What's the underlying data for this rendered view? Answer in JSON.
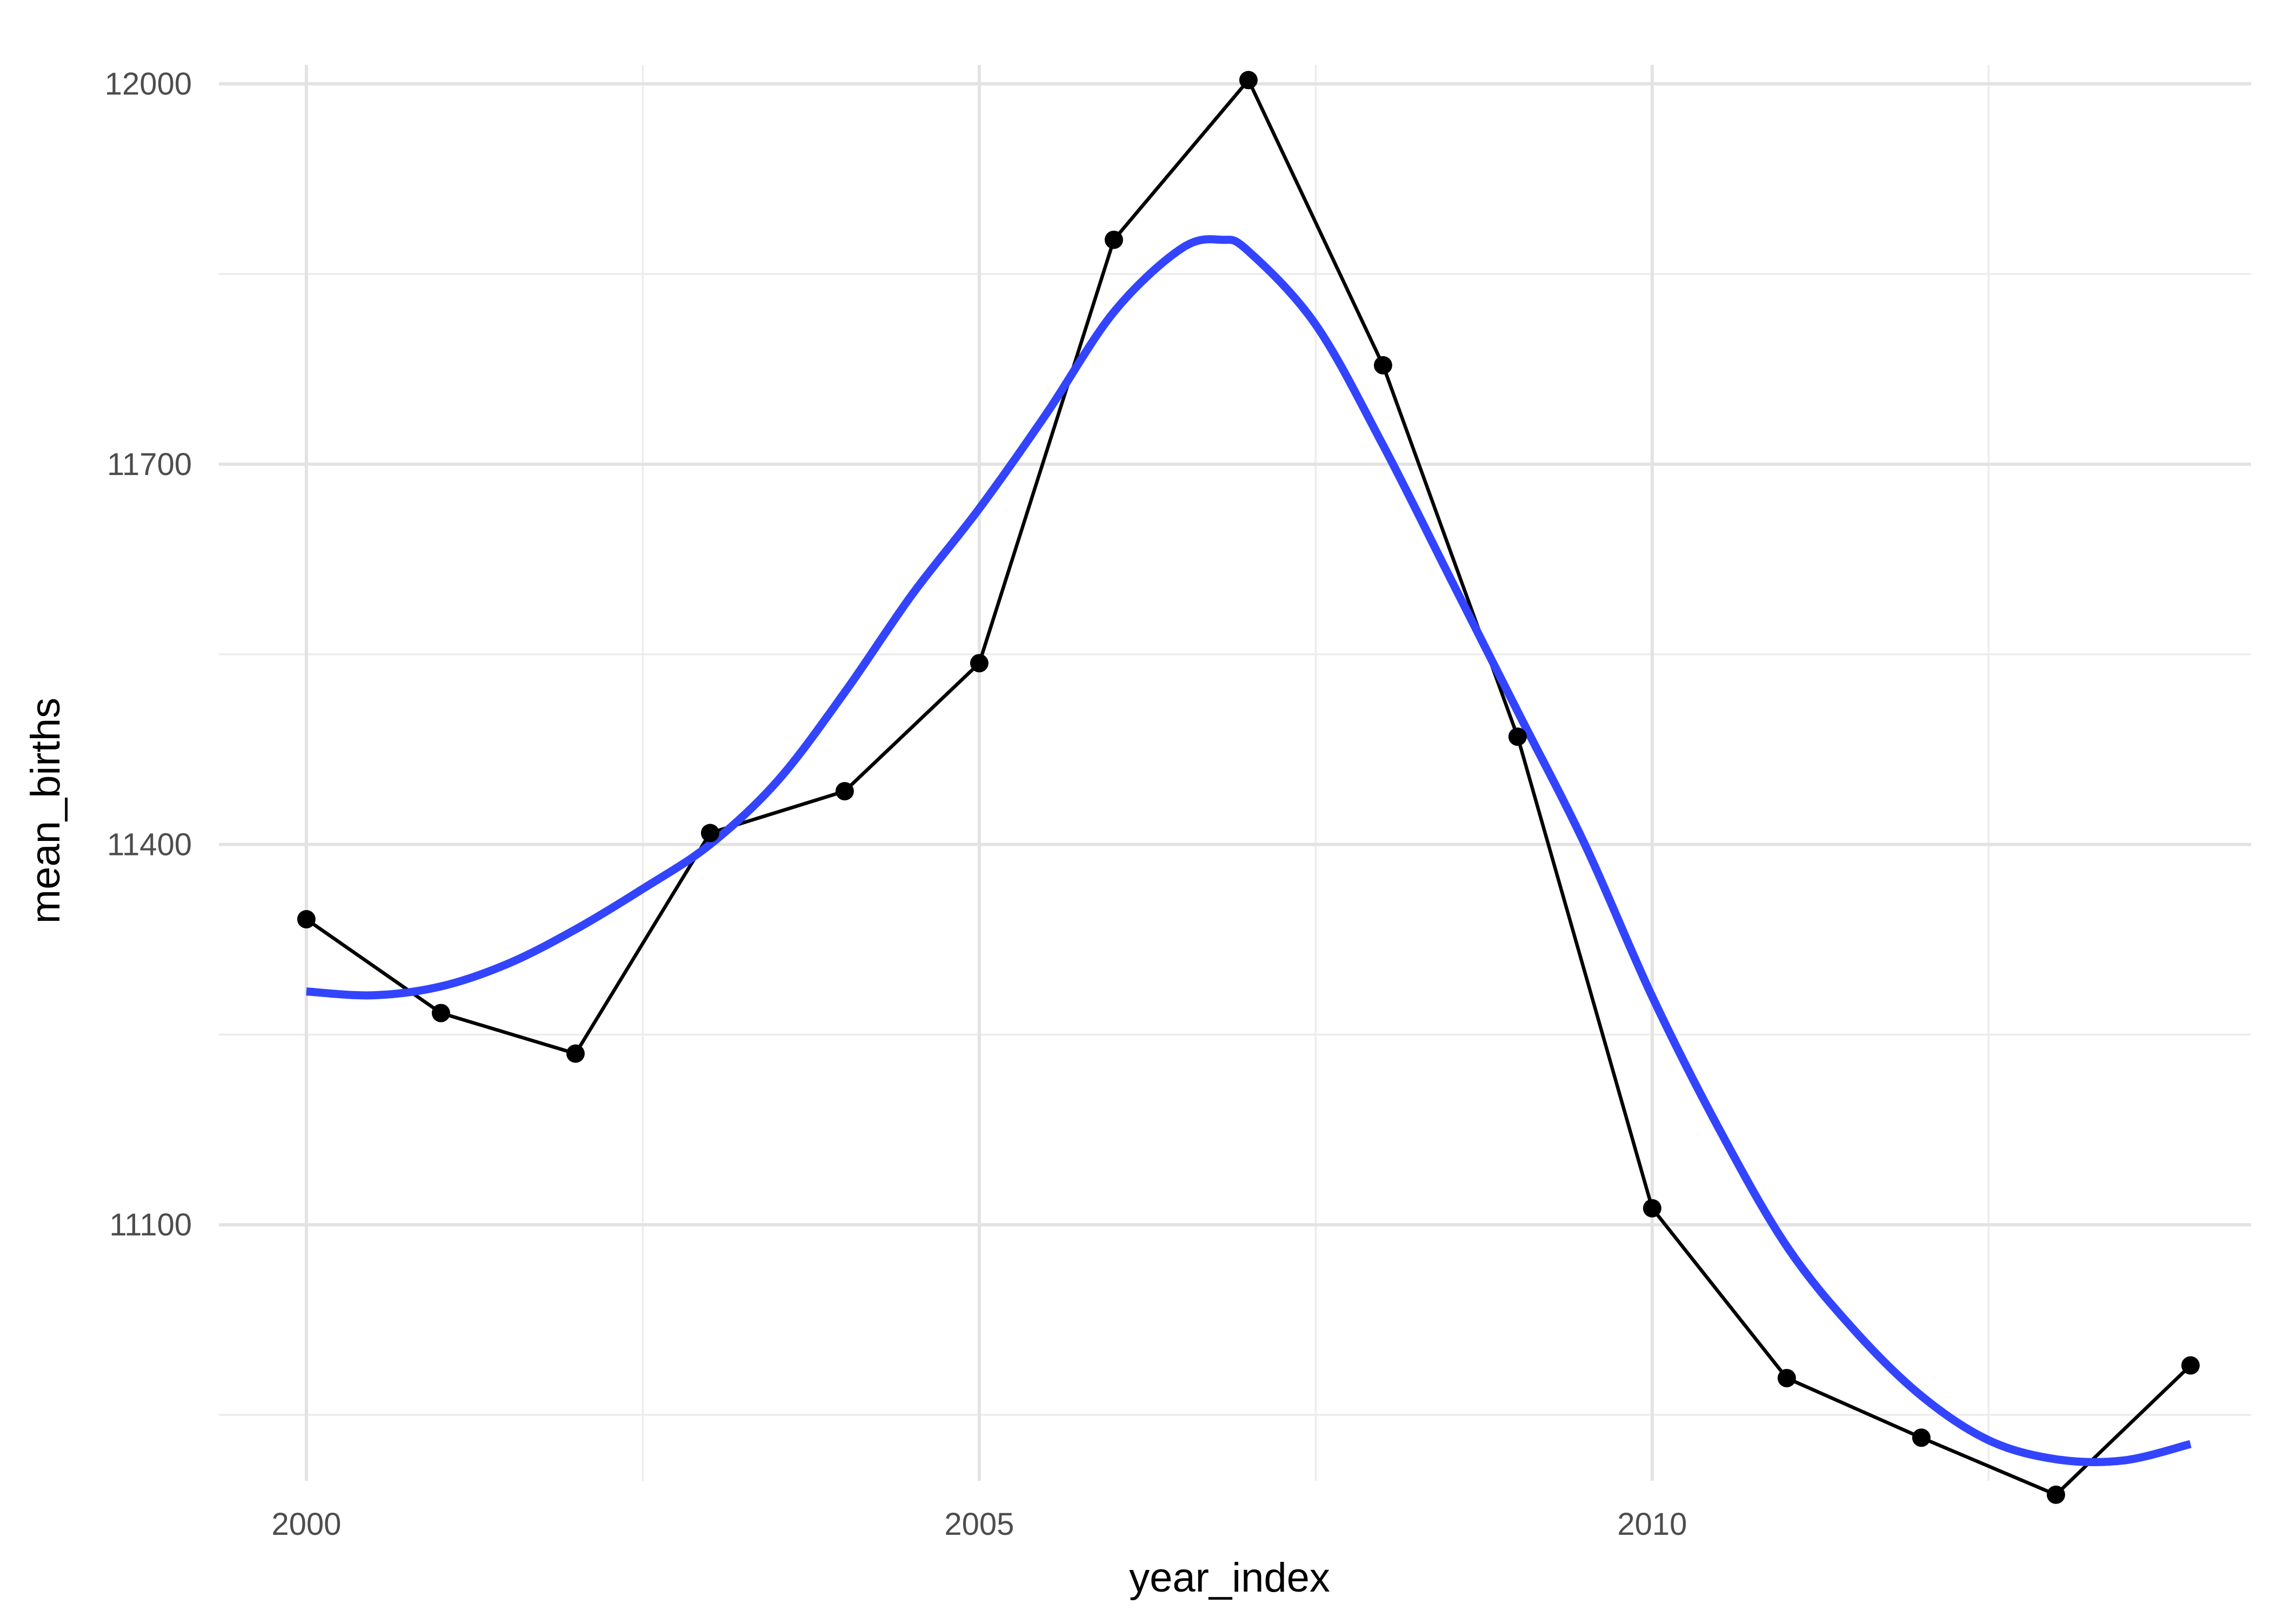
{
  "chart_data": {
    "type": "line",
    "title": "",
    "xlabel": "year_index",
    "ylabel": "mean_births",
    "xlim": [
      1999.35,
      2014.45
    ],
    "ylim": [
      10898,
      12015
    ],
    "x_ticks": [
      2000,
      2005,
      2010
    ],
    "x_tick_labels": [
      "2000",
      "2005",
      "2010"
    ],
    "y_ticks": [
      11100,
      11400,
      11700,
      12000
    ],
    "y_tick_labels": [
      "11100",
      "11400",
      "11700",
      "12000"
    ],
    "grid": true,
    "legend": "none",
    "series": [
      {
        "kind": "line+points",
        "color": "#000000",
        "x": [
          2000,
          2001,
          2002,
          2003,
          2004,
          2005,
          2006,
          2007,
          2008,
          2009,
          2010,
          2011,
          2012,
          2013,
          2014
        ],
        "y": [
          11341,
          11267,
          11235,
          11409,
          11442,
          11543,
          11877,
          12003,
          11778,
          11485,
          11113,
          10979,
          10932,
          10887,
          10989
        ]
      },
      {
        "kind": "smooth",
        "color": "#3344ff",
        "x": [
          2000,
          2000.5,
          2001,
          2001.5,
          2002,
          2002.5,
          2003,
          2003.5,
          2004,
          2004.5,
          2005,
          2005.5,
          2006,
          2006.5,
          2006.8,
          2007,
          2007.5,
          2008,
          2008.5,
          2009,
          2009.5,
          2010,
          2010.5,
          2011,
          2011.5,
          2012,
          2012.5,
          2013,
          2013.5,
          2014
        ],
        "y": [
          11284,
          11281,
          11288,
          11306,
          11333,
          11365,
          11400,
          11450,
          11520,
          11597,
          11665,
          11740,
          11820,
          11870,
          11877,
          11868,
          11810,
          11715,
          11610,
          11505,
          11400,
          11280,
          11175,
          11083,
          11017,
          10965,
          10930,
          10915,
          10914,
          10927
        ]
      }
    ]
  }
}
